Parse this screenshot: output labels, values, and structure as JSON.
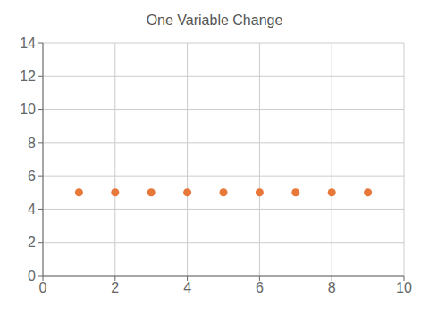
{
  "chart_data": {
    "type": "scatter",
    "title": "One Variable Change",
    "x": [
      1,
      2,
      3,
      4,
      5,
      6,
      7,
      8,
      9
    ],
    "values": [
      5,
      5,
      5,
      5,
      5,
      5,
      5,
      5,
      5
    ],
    "color": "#E8773A",
    "xlim": [
      0,
      10
    ],
    "ylim": [
      0,
      14
    ],
    "xticks": [
      0,
      2,
      4,
      6,
      8,
      10
    ],
    "yticks": [
      0,
      2,
      4,
      6,
      8,
      10,
      12,
      14
    ],
    "grid": true
  }
}
